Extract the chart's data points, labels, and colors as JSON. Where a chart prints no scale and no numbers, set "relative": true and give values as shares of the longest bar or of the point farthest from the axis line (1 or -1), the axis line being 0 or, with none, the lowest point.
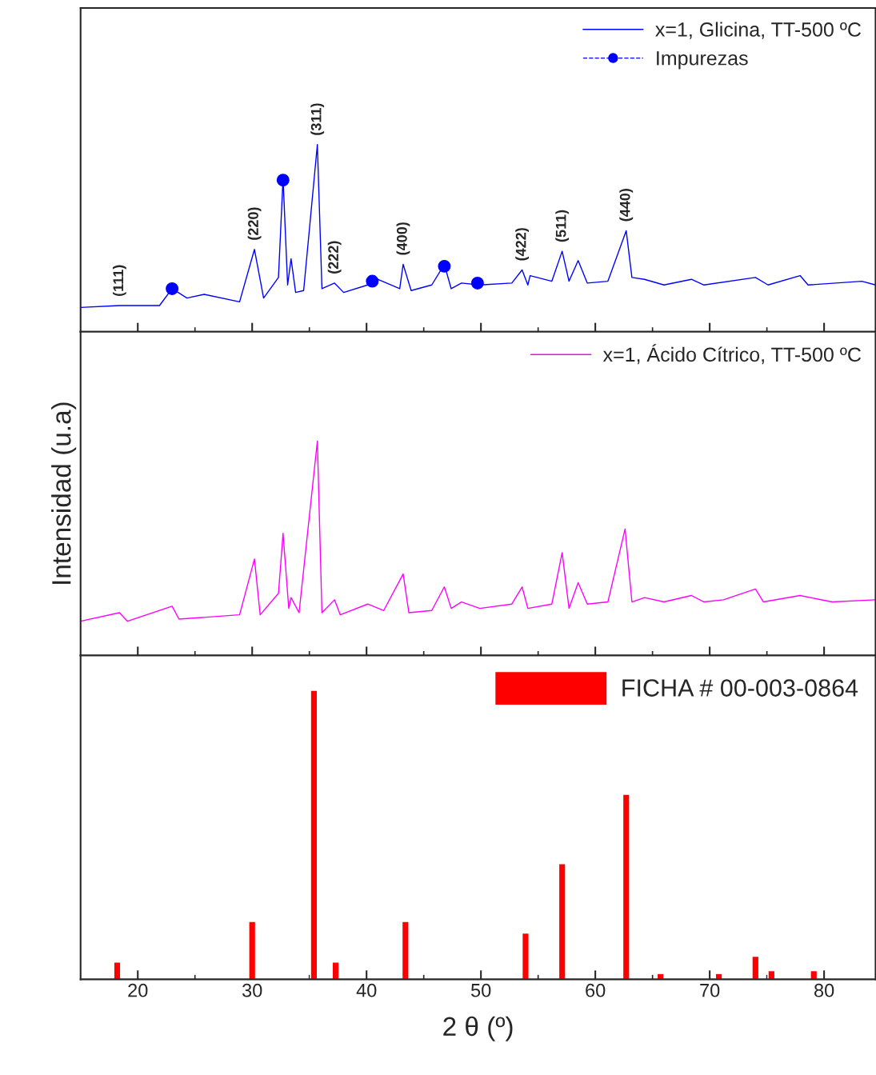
{
  "chart_data": [
    {
      "type": "line",
      "relative": true,
      "xlim": [
        15,
        84.5
      ],
      "xticks": [
        20,
        30,
        40,
        50,
        60,
        70,
        80
      ],
      "tick_labels": false,
      "legend": "top right",
      "grid": false,
      "series": [
        {
          "name": "x=1, Glicina, TT-500 ºC",
          "color": "#0000ff",
          "type": "line",
          "x": [
            15.0,
            18.4,
            21.9,
            23.0,
            24.3,
            25.8,
            28.9,
            30.2,
            31.0,
            32.3,
            32.7,
            33.1,
            33.4,
            33.8,
            34.5,
            35.7,
            36.1,
            37.2,
            38.0,
            40.1,
            40.6,
            42.9,
            43.2,
            43.9,
            45.7,
            46.8,
            47.4,
            48.3,
            49.9,
            52.7,
            53.6,
            54.1,
            54.3,
            56.2,
            57.1,
            57.7,
            58.5,
            59.3,
            61.1,
            62.7,
            63.2,
            64.3,
            66.0,
            68.4,
            69.5,
            74.0,
            75.1,
            77.9,
            78.6,
            83.3,
            84.5
          ],
          "values": [
            0.13,
            0.14,
            0.14,
            0.23,
            0.18,
            0.2,
            0.16,
            0.44,
            0.18,
            0.29,
            0.82,
            0.25,
            0.39,
            0.21,
            0.22,
            1.0,
            0.23,
            0.26,
            0.21,
            0.25,
            0.29,
            0.23,
            0.36,
            0.22,
            0.25,
            0.36,
            0.23,
            0.26,
            0.25,
            0.26,
            0.33,
            0.25,
            0.3,
            0.27,
            0.43,
            0.27,
            0.38,
            0.26,
            0.27,
            0.54,
            0.29,
            0.28,
            0.25,
            0.28,
            0.25,
            0.29,
            0.25,
            0.3,
            0.25,
            0.27,
            0.25
          ]
        },
        {
          "name": "Impurezas",
          "color": "#0000ff",
          "type": "scatter",
          "marker": "circle",
          "x": [
            23.0,
            32.7,
            40.5,
            46.8,
            49.7
          ],
          "values": [
            0.23,
            0.81,
            0.27,
            0.35,
            0.26
          ]
        }
      ],
      "annotations": [
        {
          "text": "(111)",
          "x": 18.4,
          "y": 0.14
        },
        {
          "text": "(220)",
          "x": 30.2,
          "y": 0.44
        },
        {
          "text": "(311)",
          "x": 35.7,
          "y": 1.0
        },
        {
          "text": "(222)",
          "x": 37.2,
          "y": 0.26
        },
        {
          "text": "(400)",
          "x": 43.2,
          "y": 0.36
        },
        {
          "text": "(422)",
          "x": 53.6,
          "y": 0.33
        },
        {
          "text": "(511)",
          "x": 57.1,
          "y": 0.43
        },
        {
          "text": "(440)",
          "x": 62.7,
          "y": 0.54
        }
      ]
    },
    {
      "type": "line",
      "relative": true,
      "xlim": [
        15,
        84.5
      ],
      "xticks": [
        20,
        30,
        40,
        50,
        60,
        70,
        80
      ],
      "tick_labels": false,
      "legend": "top right",
      "grid": false,
      "ylabel": "Intensidad (u.a)",
      "series": [
        {
          "name": "x=1, Ácido Cítrico, TT-500 ºC",
          "color": "#ff00ff",
          "x": [
            15.0,
            18.4,
            19.1,
            23.0,
            23.6,
            28.9,
            30.2,
            30.7,
            32.3,
            32.7,
            33.2,
            33.4,
            34.1,
            35.7,
            36.1,
            37.2,
            37.7,
            40.1,
            41.5,
            43.2,
            43.7,
            45.7,
            46.8,
            47.4,
            48.3,
            49.9,
            52.7,
            53.6,
            54.1,
            56.2,
            57.1,
            57.7,
            58.5,
            59.3,
            61.1,
            62.6,
            63.2,
            64.3,
            66.0,
            68.4,
            69.5,
            71.2,
            74.0,
            74.7,
            77.9,
            80.7,
            84.5
          ],
          "values": [
            0.16,
            0.2,
            0.16,
            0.23,
            0.17,
            0.19,
            0.45,
            0.19,
            0.29,
            0.57,
            0.22,
            0.27,
            0.2,
            1.0,
            0.2,
            0.26,
            0.19,
            0.24,
            0.21,
            0.38,
            0.2,
            0.21,
            0.32,
            0.22,
            0.25,
            0.22,
            0.24,
            0.32,
            0.22,
            0.24,
            0.48,
            0.22,
            0.34,
            0.24,
            0.25,
            0.59,
            0.25,
            0.27,
            0.25,
            0.28,
            0.25,
            0.26,
            0.31,
            0.25,
            0.28,
            0.25,
            0.26
          ]
        }
      ]
    },
    {
      "type": "bar",
      "relative": true,
      "xlim": [
        15,
        84.5
      ],
      "xticks": [
        20,
        30,
        40,
        50,
        60,
        70,
        80
      ],
      "tick_labels": "x",
      "legend": "top right",
      "grid": false,
      "xlabel": "2 θ (º)",
      "series": [
        {
          "name": "FICHA # 00-003-0864",
          "color": "#ff0000",
          "x": [
            18.2,
            30.0,
            35.4,
            37.3,
            43.4,
            53.9,
            57.1,
            62.7,
            65.7,
            70.8,
            74.0,
            75.4,
            79.1
          ],
          "values": [
            0.06,
            0.2,
            1.0,
            0.06,
            0.2,
            0.16,
            0.4,
            0.64,
            0.02,
            0.02,
            0.08,
            0.03,
            0.03
          ]
        }
      ]
    }
  ]
}
